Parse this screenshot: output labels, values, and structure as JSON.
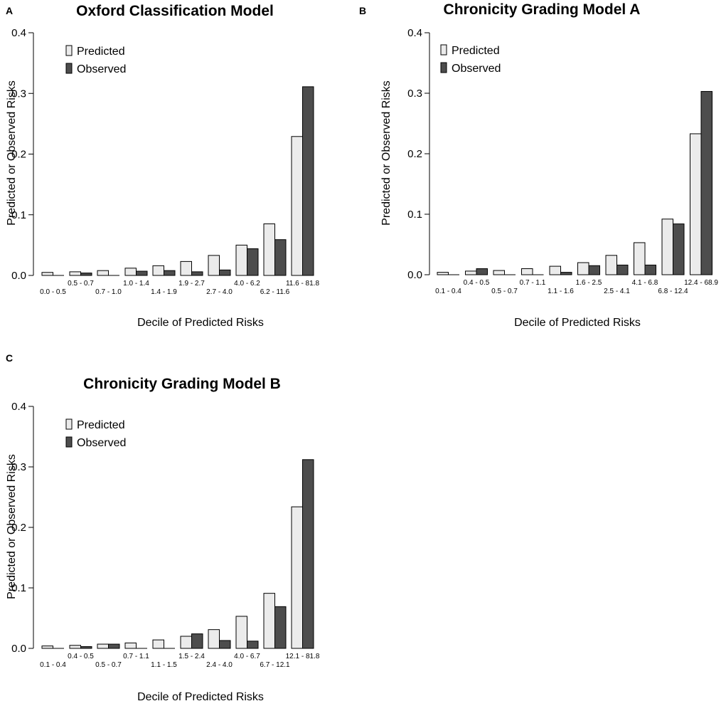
{
  "colors": {
    "predicted": "#ebebeb",
    "observed": "#4d4d4d",
    "outline": "#000000"
  },
  "chart_data": [
    {
      "panel": "A",
      "type": "bar",
      "title": "Oxford Classification Model",
      "xlabel": "Decile of Predicted Risks",
      "ylabel": "Predicted or Observed Risks",
      "ylim": [
        0,
        0.4
      ],
      "yticks": [
        "0.0",
        "0.1",
        "0.2",
        "0.3",
        "0.4"
      ],
      "legend": [
        "Predicted",
        "Observed"
      ],
      "legend_position": "top-left",
      "categories": [
        "0.0 - 0.5",
        "0.5 - 0.7",
        "0.7 - 1.0",
        "1.0 - 1.4",
        "1.4 - 1.9",
        "1.9 - 2.7",
        "2.7 - 4.0",
        "4.0 - 6.2",
        "6.2 - 11.6",
        "11.6 - 81.8"
      ],
      "series": [
        {
          "name": "Predicted",
          "values": [
            0.005,
            0.006,
            0.008,
            0.012,
            0.016,
            0.023,
            0.033,
            0.05,
            0.085,
            0.229
          ]
        },
        {
          "name": "Observed",
          "values": [
            0.0,
            0.004,
            0.0,
            0.007,
            0.008,
            0.006,
            0.009,
            0.044,
            0.059,
            0.311
          ]
        }
      ]
    },
    {
      "panel": "B",
      "type": "bar",
      "title": "Chronicity Grading Model A",
      "xlabel": "Decile of Predicted Risks",
      "ylabel": "Predicted or Observed Risks",
      "ylim": [
        0,
        0.4
      ],
      "yticks": [
        "0.0",
        "0.1",
        "0.2",
        "0.3",
        "0.4"
      ],
      "legend": [
        "Predicted",
        "Observed"
      ],
      "legend_position": "top-left",
      "categories": [
        "0.1 - 0.4",
        "0.4 - 0.5",
        "0.5 - 0.7",
        "0.7 - 1.1",
        "1.1 - 1.6",
        "1.6 - 2.5",
        "2.5 - 4.1",
        "4.1 - 6.8",
        "6.8 - 12.4",
        "12.4 - 68.9"
      ],
      "series": [
        {
          "name": "Predicted",
          "values": [
            0.004,
            0.006,
            0.007,
            0.01,
            0.014,
            0.02,
            0.032,
            0.053,
            0.092,
            0.233
          ]
        },
        {
          "name": "Observed",
          "values": [
            0.0,
            0.01,
            0.0,
            0.0,
            0.004,
            0.015,
            0.016,
            0.016,
            0.084,
            0.303
          ]
        }
      ]
    },
    {
      "panel": "C",
      "type": "bar",
      "title": "Chronicity Grading Model B",
      "xlabel": "Decile of Predicted Risks",
      "ylabel": "Predicted or Observed Risks",
      "ylim": [
        0,
        0.4
      ],
      "yticks": [
        "0.0",
        "0.1",
        "0.2",
        "0.3",
        "0.4"
      ],
      "legend": [
        "Predicted",
        "Observed"
      ],
      "legend_position": "top-left",
      "categories": [
        "0.1 - 0.4",
        "0.4 - 0.5",
        "0.5 - 0.7",
        "0.7 - 1.1",
        "1.1 - 1.5",
        "1.5 - 2.4",
        "2.4 - 4.0",
        "4.0 - 6.7",
        "6.7 - 12.1",
        "12.1 - 81.8"
      ],
      "series": [
        {
          "name": "Predicted",
          "values": [
            0.004,
            0.005,
            0.007,
            0.009,
            0.014,
            0.02,
            0.031,
            0.053,
            0.091,
            0.234
          ]
        },
        {
          "name": "Observed",
          "values": [
            0.0,
            0.003,
            0.007,
            0.0,
            0.0,
            0.024,
            0.013,
            0.012,
            0.069,
            0.312
          ]
        }
      ]
    }
  ]
}
